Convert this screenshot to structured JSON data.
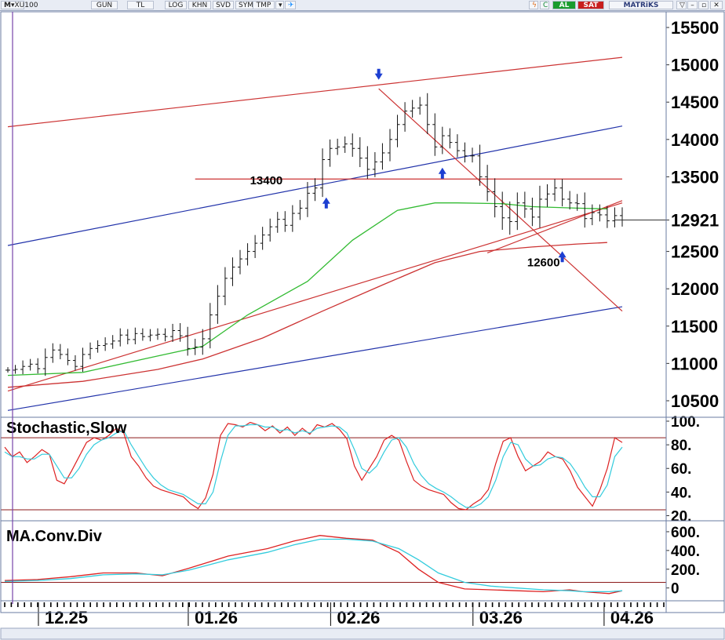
{
  "toolbar": {
    "symbol": "XU100",
    "period": "GUN",
    "currency": "TL",
    "buttons": [
      "LOG",
      "KHN",
      "SVD",
      "SYM",
      "TMP"
    ],
    "buy_label": "AL",
    "sell_label": "SAT",
    "brand": "MATRiKS",
    "menu_label": "M"
  },
  "chart_data": [
    {
      "type": "ohlc",
      "x_range": [
        0,
        82
      ],
      "ylim": [
        10300,
        15700
      ],
      "y_ticks": [
        10500,
        11000,
        11500,
        12000,
        12500,
        12921,
        13500,
        14000,
        14500,
        15000,
        15500
      ],
      "y_tick_labels": [
        "10500",
        "11000",
        "11500",
        "12000",
        "12500",
        "12921",
        "13500",
        "14000",
        "14500",
        "15000",
        "15500"
      ],
      "last_value": 12921,
      "x_tick_labels": [
        {
          "label": "12.25",
          "x": 4.5
        },
        {
          "label": "01.26",
          "x": 24.5
        },
        {
          "label": "02.26",
          "x": 43.5
        },
        {
          "label": "03.26",
          "x": 62.5
        },
        {
          "label": "04.26",
          "x": 80
        }
      ],
      "closes": [
        10910,
        10920,
        10960,
        10990,
        10930,
        11080,
        11180,
        11120,
        11040,
        10960,
        11120,
        11200,
        11240,
        11260,
        11300,
        11380,
        11320,
        11400,
        11360,
        11380,
        11390,
        11360,
        11440,
        11370,
        11200,
        11220,
        11330,
        11650,
        11900,
        12140,
        12290,
        12400,
        12500,
        12610,
        12720,
        12830,
        12930,
        12850,
        13010,
        13080,
        13280,
        13350,
        13730,
        13880,
        13900,
        13940,
        13880,
        13750,
        13600,
        13700,
        13820,
        14000,
        14200,
        14380,
        14420,
        14460,
        14200,
        13900,
        14050,
        13960,
        13850,
        13780,
        13780,
        13500,
        13300,
        13100,
        12950,
        12900,
        13150,
        13070,
        12960,
        13200,
        13270,
        13350,
        13200,
        13150,
        13140,
        12940,
        13020,
        12990,
        12910,
        12980,
        12921
      ],
      "high_low_pad": [
        40,
        60,
        80,
        70,
        80,
        120,
        90,
        80,
        80,
        70,
        90,
        80,
        70,
        90,
        80,
        90,
        80,
        80,
        70,
        80,
        80,
        80,
        90,
        100,
        120,
        110,
        130,
        160,
        150,
        150,
        130,
        120,
        110,
        110,
        110,
        110,
        100,
        110,
        110,
        110,
        150,
        130,
        150,
        120,
        110,
        100,
        140,
        150,
        160,
        130,
        130,
        140,
        130,
        120,
        110,
        110,
        160,
        150,
        120,
        100,
        110,
        110,
        110,
        150,
        160,
        180,
        200,
        220,
        140,
        150,
        150,
        180,
        130,
        120,
        120,
        110,
        120,
        150,
        110,
        110,
        120,
        110,
        110
      ],
      "annotations": [
        {
          "label": "13400",
          "x": 34.5,
          "y": 13400
        },
        {
          "label": "12600",
          "x": 71.5,
          "y": 12300
        }
      ],
      "arrows": [
        {
          "dir": "down",
          "x": 49.5,
          "y": 14820
        },
        {
          "dir": "up",
          "x": 42.5,
          "y": 13160
        },
        {
          "dir": "up",
          "x": 58,
          "y": 13560
        },
        {
          "dir": "up",
          "x": 74,
          "y": 12440
        }
      ],
      "trendlines": [
        {
          "color": "#cc3333",
          "x1": 0,
          "y1": 14170,
          "x2": 82,
          "y2": 15100
        },
        {
          "color": "#2233aa",
          "x1": 0,
          "y1": 12580,
          "x2": 82,
          "y2": 14180
        },
        {
          "color": "#2233aa",
          "x1": 0,
          "y1": 10370,
          "x2": 82,
          "y2": 11760
        },
        {
          "color": "#cc3333",
          "x1": 25,
          "y1": 13470,
          "x2": 82,
          "y2": 13470
        },
        {
          "color": "#cc3333",
          "x1": 49.5,
          "y1": 14680,
          "x2": 82,
          "y2": 11700
        },
        {
          "color": "#cc3333",
          "x1": 64,
          "y1": 12480,
          "x2": 82,
          "y2": 13180
        },
        {
          "color": "#cc3333",
          "x1": 0,
          "y1": 10630,
          "x2": 82,
          "y2": 13150
        }
      ],
      "ma_series": [
        {
          "name": "MA-green",
          "color": "#33bb33",
          "points": [
            [
              0,
              10840
            ],
            [
              10,
              10880
            ],
            [
              20,
              11100
            ],
            [
              26,
              11230
            ],
            [
              32,
              11650
            ],
            [
              40,
              12100
            ],
            [
              46,
              12650
            ],
            [
              52,
              13050
            ],
            [
              57,
              13150
            ],
            [
              60,
              13150
            ],
            [
              66,
              13140
            ],
            [
              70,
              13100
            ],
            [
              76,
              13080
            ],
            [
              80,
              13070
            ]
          ]
        },
        {
          "name": "MA-red",
          "color": "#cc3333",
          "points": [
            [
              0,
              10680
            ],
            [
              10,
              10760
            ],
            [
              20,
              10920
            ],
            [
              26,
              11060
            ],
            [
              34,
              11340
            ],
            [
              42,
              11700
            ],
            [
              50,
              12050
            ],
            [
              57,
              12350
            ],
            [
              63,
              12500
            ],
            [
              70,
              12560
            ],
            [
              76,
              12600
            ],
            [
              80,
              12620
            ]
          ]
        }
      ]
    },
    {
      "type": "line",
      "title": "Stochastic,Slow",
      "ylim": [
        17,
        102
      ],
      "y_ticks": [
        20,
        40,
        60,
        80,
        100
      ],
      "y_tick_labels": [
        "20.",
        "40.",
        "60.",
        "80.",
        "100."
      ],
      "levels": [
        25,
        86
      ],
      "series": [
        {
          "color": "#dd2222",
          "values": [
            78,
            70,
            74,
            65,
            70,
            76,
            72,
            50,
            47,
            58,
            70,
            82,
            86,
            84,
            88,
            94,
            90,
            70,
            62,
            52,
            45,
            42,
            40,
            38,
            36,
            30,
            26,
            35,
            55,
            88,
            98,
            97,
            95,
            99,
            97,
            92,
            96,
            90,
            95,
            88,
            94,
            89,
            97,
            95,
            98,
            93,
            85,
            62,
            50,
            60,
            70,
            84,
            88,
            84,
            66,
            50,
            45,
            42,
            40,
            38,
            31,
            26,
            25,
            30,
            34,
            42,
            64,
            83,
            86,
            70,
            58,
            62,
            66,
            74,
            70,
            68,
            58,
            44,
            36,
            28,
            42,
            60,
            86,
            82
          ]
        },
        {
          "color": "#33ccdd",
          "values": [
            74,
            70,
            70,
            68,
            68,
            72,
            72,
            62,
            52,
            52,
            60,
            72,
            80,
            84,
            86,
            90,
            92,
            80,
            70,
            60,
            52,
            46,
            42,
            40,
            38,
            34,
            30,
            30,
            40,
            66,
            88,
            96,
            96,
            97,
            97,
            95,
            95,
            92,
            93,
            90,
            92,
            90,
            94,
            95,
            96,
            95,
            90,
            76,
            60,
            56,
            62,
            74,
            84,
            86,
            78,
            64,
            54,
            47,
            43,
            40,
            36,
            31,
            27,
            27,
            30,
            36,
            50,
            70,
            82,
            80,
            68,
            62,
            63,
            68,
            70,
            69,
            64,
            55,
            44,
            36,
            36,
            46,
            70,
            78
          ]
        }
      ]
    },
    {
      "type": "line",
      "title": "MA.Conv.Div",
      "ylim": [
        -120,
        700
      ],
      "y_ticks": [
        0,
        200,
        400,
        600
      ],
      "y_tick_labels": [
        "0",
        "200.",
        "400.",
        "600."
      ],
      "levels": [
        60
      ],
      "series": [
        {
          "color": "#dd2222",
          "points": [
            [
              0,
              80
            ],
            [
              5,
              90
            ],
            [
              10,
              120
            ],
            [
              15,
              160
            ],
            [
              20,
              160
            ],
            [
              24,
              130
            ],
            [
              28,
              210
            ],
            [
              34,
              340
            ],
            [
              40,
              420
            ],
            [
              44,
              500
            ],
            [
              48,
              560
            ],
            [
              52,
              530
            ],
            [
              56,
              510
            ],
            [
              60,
              380
            ],
            [
              63,
              200
            ],
            [
              66,
              60
            ],
            [
              70,
              -10
            ],
            [
              74,
              -20
            ],
            [
              78,
              -30
            ],
            [
              82,
              -40
            ],
            [
              86,
              -20
            ],
            [
              88,
              -40
            ],
            [
              92,
              -60
            ],
            [
              94,
              -30
            ]
          ]
        },
        {
          "color": "#33ccdd",
          "points": [
            [
              0,
              70
            ],
            [
              5,
              80
            ],
            [
              10,
              100
            ],
            [
              15,
              140
            ],
            [
              20,
              150
            ],
            [
              24,
              140
            ],
            [
              28,
              190
            ],
            [
              34,
              300
            ],
            [
              40,
              380
            ],
            [
              44,
              460
            ],
            [
              48,
              520
            ],
            [
              52,
              520
            ],
            [
              56,
              500
            ],
            [
              60,
              420
            ],
            [
              63,
              300
            ],
            [
              66,
              160
            ],
            [
              70,
              60
            ],
            [
              74,
              20
            ],
            [
              78,
              0
            ],
            [
              82,
              -20
            ],
            [
              86,
              -30
            ],
            [
              88,
              -40
            ],
            [
              92,
              -40
            ],
            [
              94,
              -30
            ]
          ]
        }
      ]
    }
  ]
}
